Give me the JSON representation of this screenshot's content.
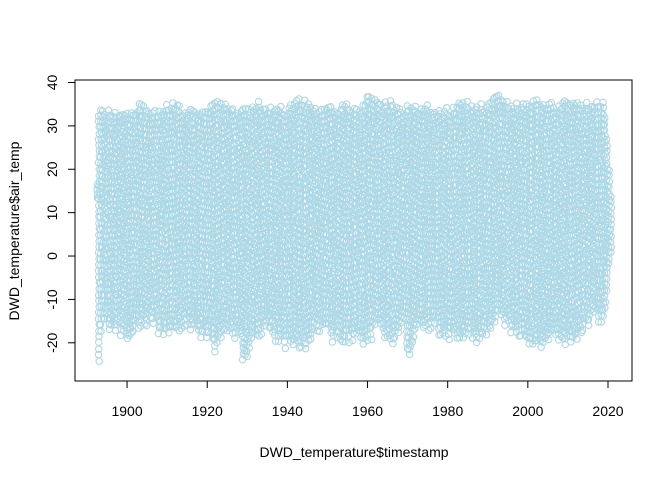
{
  "chart_data": {
    "type": "scatter",
    "xlabel": "DWD_temperature$timestamp",
    "ylabel": "DWD_temperature$air_temp",
    "xlim": [
      1892,
      2021
    ],
    "ylim": [
      -26.5,
      38.5
    ],
    "xticks": [
      1900,
      1920,
      1940,
      1960,
      1980,
      2000,
      2020
    ],
    "yticks": [
      -20,
      -10,
      0,
      10,
      20,
      30,
      40
    ],
    "x_tick_labels": [
      "1900",
      "1920",
      "1940",
      "1960",
      "1980",
      "2000",
      "2020"
    ],
    "y_tick_labels": [
      "-20",
      "-10",
      "0",
      "10",
      "20",
      "30",
      "40"
    ],
    "grid": false,
    "marker": "open-circle",
    "point_color": "#add8e6",
    "series": [
      {
        "x": [
          1892.5,
          1893.0,
          1893.3,
          1895,
          1898,
          1900,
          1904,
          1906,
          1909,
          1911,
          1914,
          1917,
          1920,
          1922,
          1925,
          1928.5,
          1929,
          1932,
          1935,
          1938,
          1940,
          1941,
          1944,
          1947,
          1950,
          1953,
          1956,
          1959.5,
          1960,
          1963,
          1966,
          1969.5,
          1970,
          1973,
          1976,
          1979,
          1982,
          1985,
          1987.5,
          1990,
          1992.5,
          1995,
          1998,
          2001,
          2004,
          2007,
          2010,
          2013,
          2016,
          2019,
          2021
        ],
        "y_max": [
          18,
          33,
          35,
          34,
          33,
          33,
          36,
          34,
          34,
          36,
          34,
          34,
          35,
          36,
          35,
          34,
          34,
          36,
          35,
          35,
          34,
          35,
          37,
          35,
          35,
          35,
          35,
          35,
          38,
          35,
          36,
          34,
          35,
          35,
          35,
          34,
          35,
          36,
          35,
          35,
          38.5,
          36,
          35,
          36,
          36,
          35,
          37,
          36,
          36,
          37,
          13
        ],
        "y_min": [
          12,
          -25,
          -18,
          -17,
          -19,
          -20,
          -16,
          -16,
          -19,
          -20,
          -16,
          -19,
          -19,
          -22,
          -18,
          -20,
          -26.5,
          -20,
          -18,
          -21,
          -22,
          -21,
          -22,
          -18,
          -19,
          -21,
          -20,
          -22,
          -20,
          -18,
          -21,
          -16,
          -24,
          -17,
          -17,
          -19,
          -21,
          -19,
          -20,
          -20,
          -15,
          -17,
          -19,
          -21,
          -21,
          -19,
          -21,
          -19,
          -16,
          -15,
          2
        ]
      }
    ]
  }
}
